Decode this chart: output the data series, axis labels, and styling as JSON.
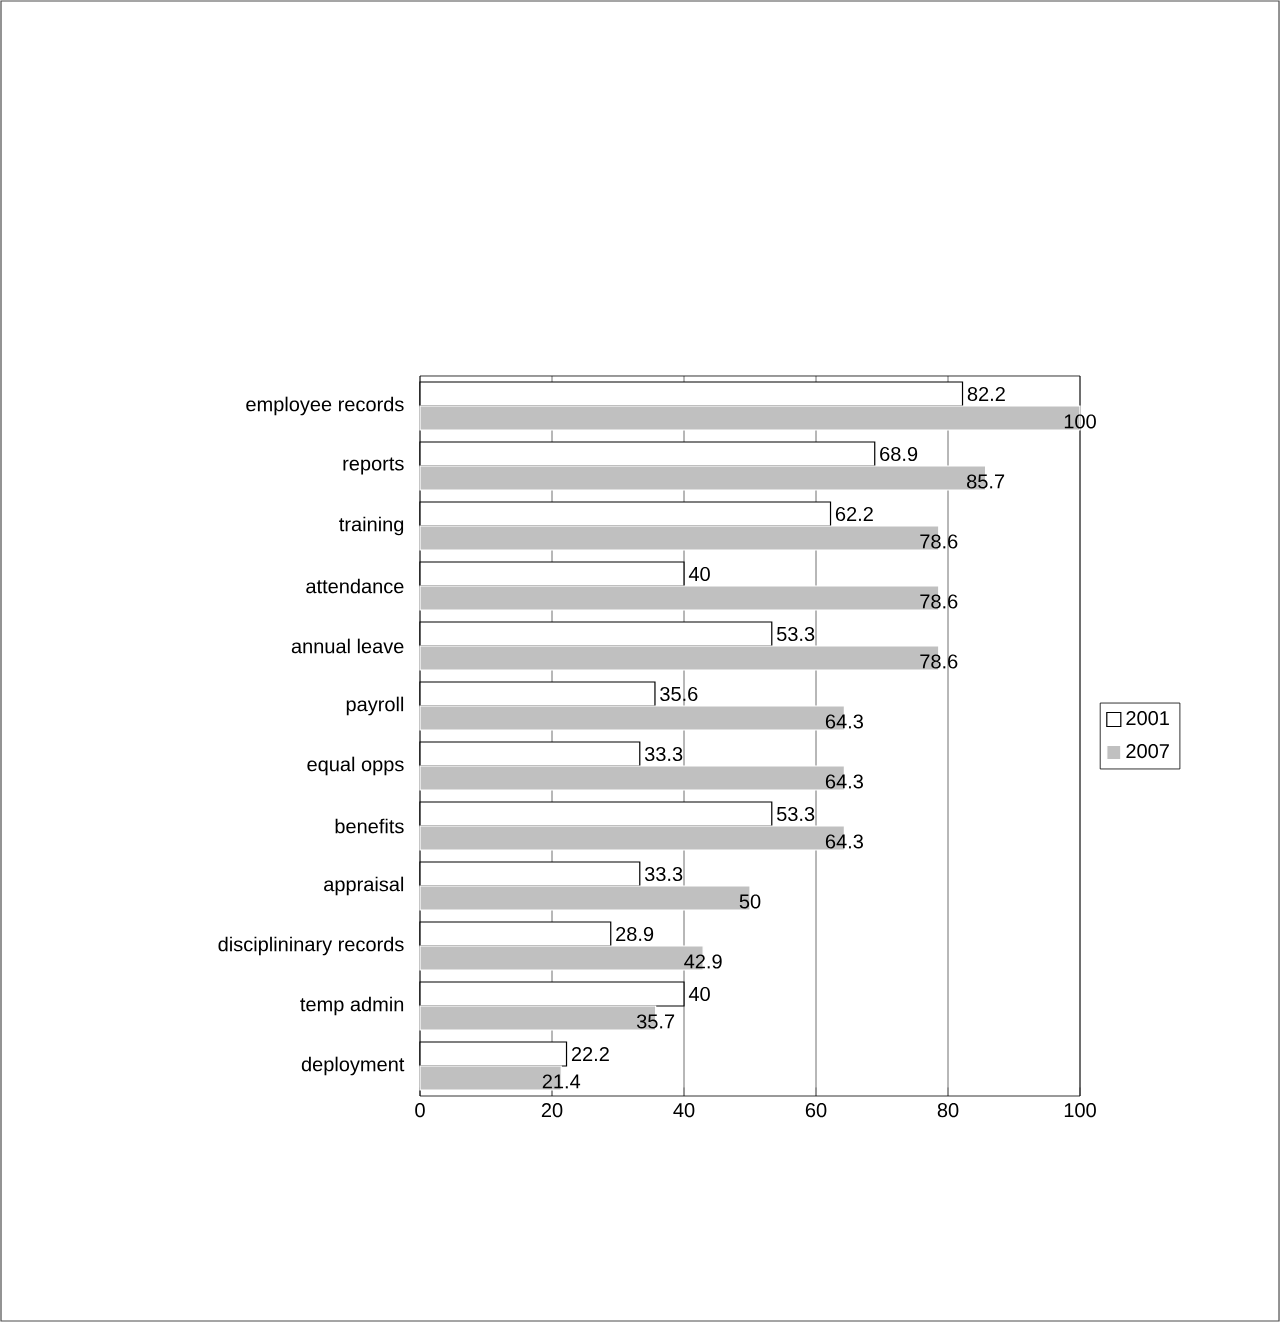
{
  "chart_data": {
    "type": "bar",
    "orientation": "horizontal",
    "categories": [
      "employee records",
      "reports",
      "training",
      "attendance",
      "annual leave",
      "payroll",
      "equal opps",
      "benefits",
      "appraisal",
      "disciplininary records",
      "temp admin",
      "deployment"
    ],
    "series": [
      {
        "name": "2001",
        "color": "#ffffff",
        "values": [
          82.2,
          68.9,
          62.2,
          40,
          53.3,
          35.6,
          33.3,
          53.3,
          33.3,
          28.9,
          40,
          22.2
        ]
      },
      {
        "name": "2007",
        "color": "#c0c0c0",
        "values": [
          100,
          85.7,
          78.6,
          78.6,
          78.6,
          64.3,
          64.3,
          64.3,
          50,
          42.9,
          35.7,
          21.4
        ]
      }
    ],
    "xlim": [
      0,
      100
    ],
    "xticks": [
      0,
      20,
      40,
      60,
      80,
      100
    ],
    "grid": "x",
    "legend": "right",
    "data_labels": true
  }
}
